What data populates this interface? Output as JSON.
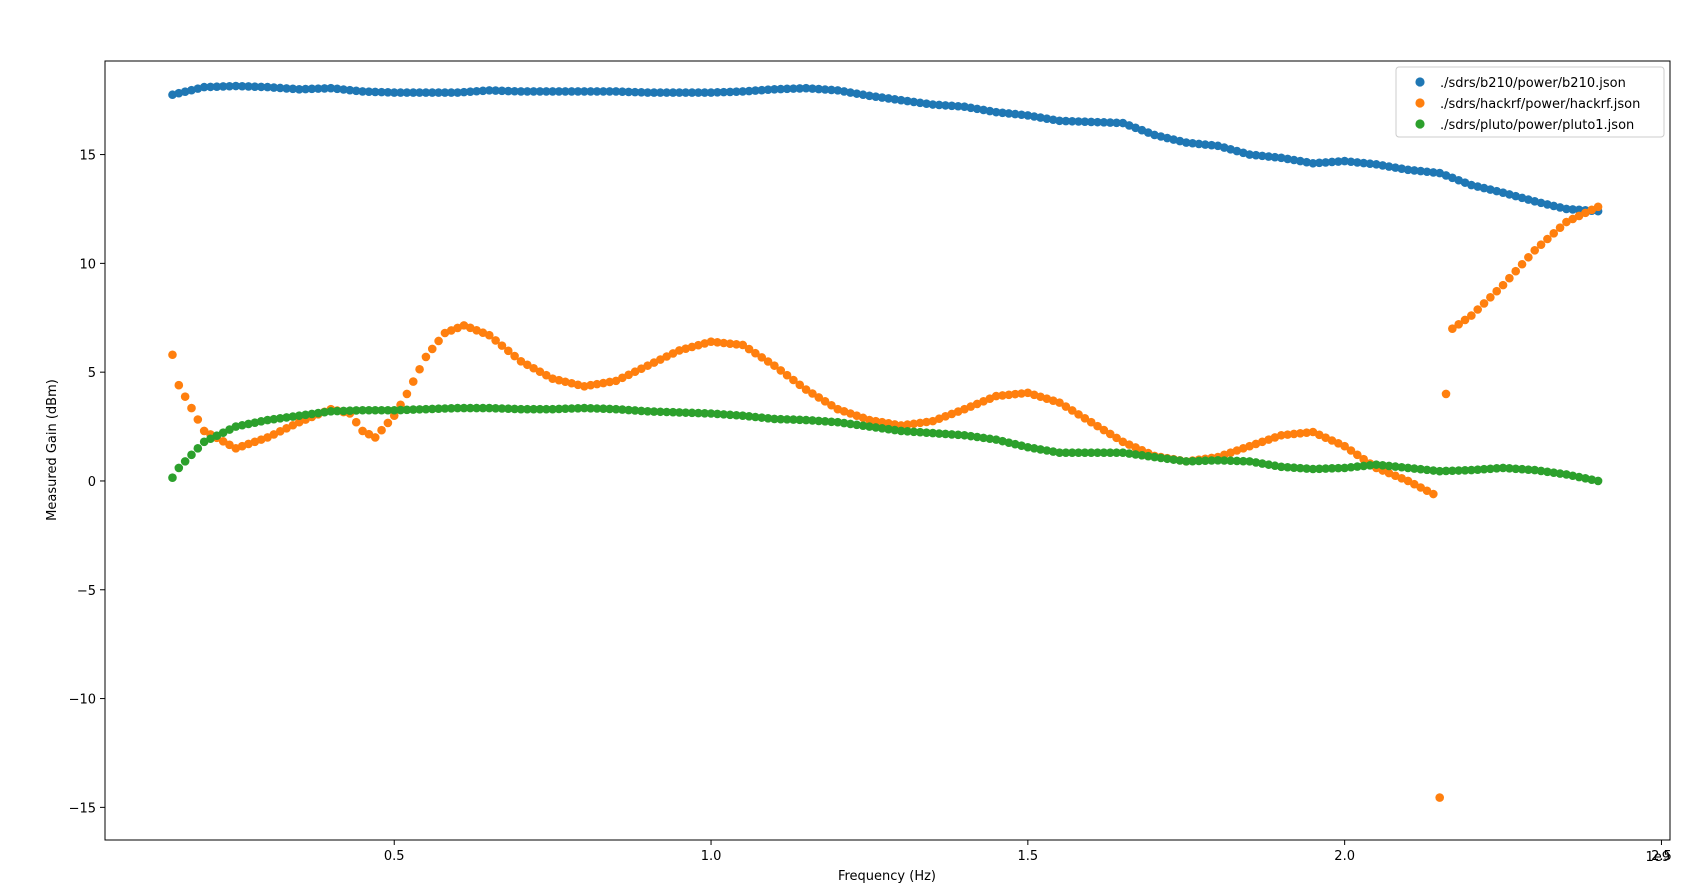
{
  "chart_data": {
    "type": "scatter",
    "xlabel": "Frequency (Hz)",
    "ylabel": "Measured Gain (dBm)",
    "x_offset_text": "1e9",
    "xlim": [
      0.0435,
      2.5135
    ],
    "ylim": [
      -16.5,
      19.3
    ],
    "x_ticks": [
      0.5,
      1.0,
      1.5,
      2.0,
      2.5
    ],
    "x_tick_labels": [
      "0.5",
      "1.0",
      "1.5",
      "2.0",
      "2.5"
    ],
    "y_ticks": [
      -15,
      -10,
      -5,
      0,
      5,
      10,
      15
    ],
    "y_tick_labels": [
      "−15",
      "−10",
      "−5",
      "0",
      "5",
      "10",
      "15"
    ],
    "grid": false,
    "legend_position": "top-right",
    "x_unit_scale": 1000000000,
    "series": [
      {
        "name": "./sdrs/b210/power/b210.json",
        "color": "#1f77b4",
        "points": [
          [
            0.15,
            17.75
          ],
          [
            0.2,
            18.1
          ],
          [
            0.25,
            18.15
          ],
          [
            0.3,
            18.1
          ],
          [
            0.35,
            18.0
          ],
          [
            0.4,
            18.05
          ],
          [
            0.45,
            17.9
          ],
          [
            0.5,
            17.85
          ],
          [
            0.55,
            17.85
          ],
          [
            0.6,
            17.85
          ],
          [
            0.65,
            17.95
          ],
          [
            0.7,
            17.9
          ],
          [
            0.75,
            17.9
          ],
          [
            0.8,
            17.9
          ],
          [
            0.85,
            17.9
          ],
          [
            0.9,
            17.85
          ],
          [
            0.95,
            17.85
          ],
          [
            1.0,
            17.85
          ],
          [
            1.05,
            17.9
          ],
          [
            1.1,
            18.0
          ],
          [
            1.15,
            18.05
          ],
          [
            1.2,
            17.95
          ],
          [
            1.25,
            17.7
          ],
          [
            1.3,
            17.5
          ],
          [
            1.35,
            17.3
          ],
          [
            1.4,
            17.2
          ],
          [
            1.45,
            16.95
          ],
          [
            1.5,
            16.8
          ],
          [
            1.55,
            16.55
          ],
          [
            1.6,
            16.5
          ],
          [
            1.65,
            16.45
          ],
          [
            1.7,
            15.9
          ],
          [
            1.75,
            15.55
          ],
          [
            1.8,
            15.4
          ],
          [
            1.85,
            15.0
          ],
          [
            1.9,
            14.85
          ],
          [
            1.95,
            14.6
          ],
          [
            2.0,
            14.7
          ],
          [
            2.05,
            14.55
          ],
          [
            2.1,
            14.3
          ],
          [
            2.15,
            14.15
          ],
          [
            2.2,
            13.6
          ],
          [
            2.25,
            13.25
          ],
          [
            2.3,
            12.85
          ],
          [
            2.35,
            12.5
          ],
          [
            2.4,
            12.4
          ]
        ]
      },
      {
        "name": "./sdrs/hackrf/power/hackrf.json",
        "color": "#ff7f0e",
        "points": [
          [
            0.15,
            5.8
          ],
          [
            0.16,
            4.4
          ],
          [
            0.2,
            2.3
          ],
          [
            0.25,
            1.5
          ],
          [
            0.3,
            2.0
          ],
          [
            0.35,
            2.7
          ],
          [
            0.4,
            3.3
          ],
          [
            0.43,
            3.1
          ],
          [
            0.45,
            2.3
          ],
          [
            0.47,
            2.0
          ],
          [
            0.5,
            3.0
          ],
          [
            0.52,
            4.0
          ],
          [
            0.55,
            5.7
          ],
          [
            0.58,
            6.8
          ],
          [
            0.61,
            7.15
          ],
          [
            0.65,
            6.7
          ],
          [
            0.7,
            5.5
          ],
          [
            0.75,
            4.7
          ],
          [
            0.8,
            4.35
          ],
          [
            0.85,
            4.6
          ],
          [
            0.9,
            5.3
          ],
          [
            0.95,
            6.0
          ],
          [
            1.0,
            6.4
          ],
          [
            1.05,
            6.25
          ],
          [
            1.1,
            5.3
          ],
          [
            1.15,
            4.2
          ],
          [
            1.2,
            3.3
          ],
          [
            1.25,
            2.8
          ],
          [
            1.3,
            2.55
          ],
          [
            1.35,
            2.75
          ],
          [
            1.4,
            3.3
          ],
          [
            1.45,
            3.9
          ],
          [
            1.5,
            4.05
          ],
          [
            1.55,
            3.6
          ],
          [
            1.6,
            2.7
          ],
          [
            1.65,
            1.8
          ],
          [
            1.7,
            1.15
          ],
          [
            1.75,
            0.9
          ],
          [
            1.8,
            1.1
          ],
          [
            1.85,
            1.6
          ],
          [
            1.9,
            2.1
          ],
          [
            1.95,
            2.25
          ],
          [
            2.0,
            1.6
          ],
          [
            2.05,
            0.6
          ],
          [
            2.1,
            0.0
          ],
          [
            2.14,
            -0.6
          ],
          [
            2.15,
            -14.55
          ],
          [
            2.16,
            4.0
          ],
          [
            2.17,
            7.0
          ],
          [
            2.2,
            7.6
          ],
          [
            2.25,
            9.0
          ],
          [
            2.3,
            10.6
          ],
          [
            2.35,
            11.9
          ],
          [
            2.4,
            12.6
          ]
        ]
      },
      {
        "name": "./sdrs/pluto/power/pluto1.json",
        "color": "#2ca02c",
        "points": [
          [
            0.15,
            0.15
          ],
          [
            0.16,
            0.6
          ],
          [
            0.2,
            1.8
          ],
          [
            0.25,
            2.5
          ],
          [
            0.3,
            2.8
          ],
          [
            0.35,
            3.0
          ],
          [
            0.4,
            3.2
          ],
          [
            0.45,
            3.25
          ],
          [
            0.5,
            3.25
          ],
          [
            0.55,
            3.3
          ],
          [
            0.6,
            3.35
          ],
          [
            0.65,
            3.35
          ],
          [
            0.7,
            3.3
          ],
          [
            0.75,
            3.3
          ],
          [
            0.8,
            3.35
          ],
          [
            0.85,
            3.3
          ],
          [
            0.9,
            3.2
          ],
          [
            0.95,
            3.15
          ],
          [
            1.0,
            3.1
          ],
          [
            1.05,
            3.0
          ],
          [
            1.1,
            2.85
          ],
          [
            1.15,
            2.8
          ],
          [
            1.2,
            2.7
          ],
          [
            1.25,
            2.5
          ],
          [
            1.3,
            2.3
          ],
          [
            1.35,
            2.2
          ],
          [
            1.4,
            2.1
          ],
          [
            1.45,
            1.9
          ],
          [
            1.5,
            1.55
          ],
          [
            1.55,
            1.3
          ],
          [
            1.6,
            1.3
          ],
          [
            1.65,
            1.3
          ],
          [
            1.7,
            1.1
          ],
          [
            1.75,
            0.9
          ],
          [
            1.8,
            0.95
          ],
          [
            1.85,
            0.9
          ],
          [
            1.9,
            0.65
          ],
          [
            1.95,
            0.55
          ],
          [
            2.0,
            0.6
          ],
          [
            2.05,
            0.75
          ],
          [
            2.1,
            0.6
          ],
          [
            2.15,
            0.45
          ],
          [
            2.2,
            0.5
          ],
          [
            2.25,
            0.6
          ],
          [
            2.3,
            0.5
          ],
          [
            2.35,
            0.3
          ],
          [
            2.4,
            0.0
          ]
        ]
      }
    ]
  }
}
